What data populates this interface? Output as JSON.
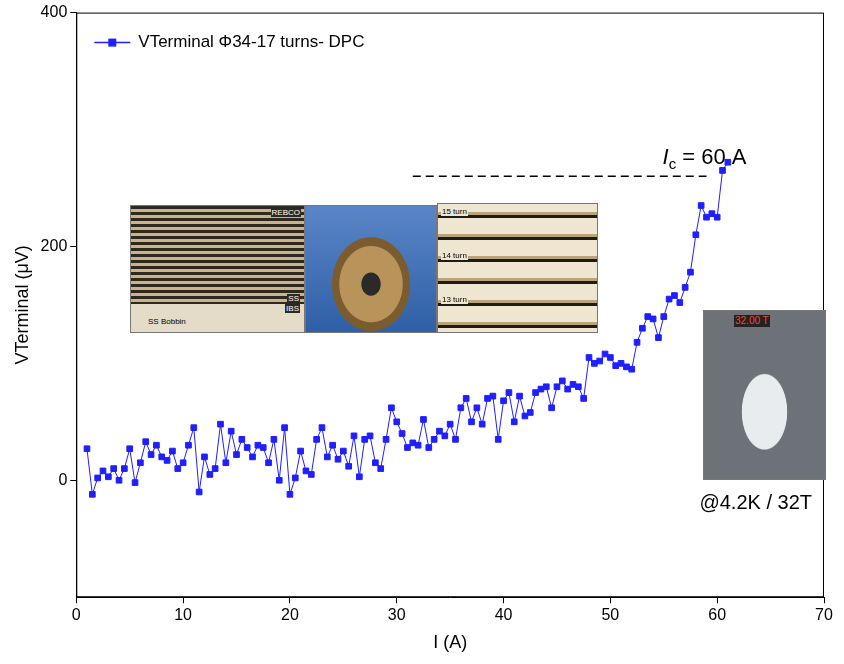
{
  "chart_data": {
    "type": "line",
    "x_label": "I (A)",
    "y_label": "VTerminal (μV)",
    "x": [
      1,
      1.5,
      2,
      2.5,
      3,
      3.5,
      4,
      4.5,
      5,
      5.5,
      6,
      6.5,
      7,
      7.5,
      8,
      8.5,
      9,
      9.5,
      10,
      10.5,
      11,
      11.5,
      12,
      12.5,
      13,
      13.5,
      14,
      14.5,
      15,
      15.5,
      16,
      16.5,
      17,
      17.5,
      18,
      18.5,
      19,
      19.5,
      20,
      20.5,
      21,
      21.5,
      22,
      22.5,
      23,
      23.5,
      24,
      24.5,
      25,
      25.5,
      26,
      26.5,
      27,
      27.5,
      28,
      28.5,
      29,
      29.5,
      30,
      30.5,
      31,
      31.5,
      32,
      32.5,
      33,
      33.5,
      34,
      34.5,
      35,
      35.5,
      36,
      36.5,
      37,
      37.5,
      38,
      38.5,
      39,
      39.5,
      40,
      40.5,
      41,
      41.5,
      42,
      42.5,
      43,
      43.5,
      44,
      44.5,
      45,
      45.5,
      46,
      46.5,
      47,
      47.5,
      48,
      48.5,
      49,
      49.5,
      50,
      50.5,
      51,
      51.5,
      52,
      52.5,
      53,
      53.5,
      54,
      54.5,
      55,
      55.5,
      56,
      56.5,
      57,
      57.5,
      58,
      58.5,
      59,
      59.5,
      60,
      60.5,
      61
    ],
    "series": [
      {
        "name": "VTerminal Φ34-17 turns- DPC",
        "color": "#1f1fff",
        "marker": "square",
        "line_style": "solid",
        "values": [
          27,
          -12,
          2,
          8,
          3,
          10,
          0,
          10,
          27,
          -2,
          15,
          33,
          22,
          30,
          20,
          17,
          25,
          10,
          15,
          30,
          45,
          -10,
          20,
          5,
          10,
          48,
          15,
          42,
          22,
          35,
          28,
          20,
          30,
          28,
          15,
          35,
          0,
          45,
          -12,
          2,
          25,
          8,
          5,
          35,
          45,
          20,
          30,
          18,
          25,
          12,
          38,
          3,
          35,
          38,
          15,
          10,
          35,
          62,
          50,
          40,
          28,
          32,
          30,
          52,
          28,
          35,
          42,
          38,
          48,
          35,
          62,
          70,
          50,
          62,
          48,
          70,
          72,
          35,
          68,
          75,
          50,
          72,
          55,
          58,
          75,
          78,
          80,
          62,
          80,
          85,
          78,
          82,
          80,
          70,
          105,
          100,
          102,
          108,
          105,
          98,
          100,
          97,
          95,
          118,
          130,
          140,
          138,
          122,
          140,
          155,
          158,
          152,
          165,
          178,
          210,
          235,
          225,
          228,
          225,
          265,
          272
        ]
      }
    ],
    "xlim": [
      0,
      70
    ],
    "xticks": [
      0,
      10,
      20,
      30,
      40,
      50,
      60,
      70
    ],
    "ylim": [
      -100,
      400
    ],
    "yticks": [
      0,
      200,
      400
    ],
    "grid": false,
    "legend": "upper left",
    "annotations": [
      {
        "text": "Ic = 60 A",
        "y": 260,
        "x": [
          31.5,
          59
        ],
        "line_style": "dashed"
      },
      {
        "text": "@4.2K / 32T"
      }
    ],
    "insets": [
      {
        "labels": [
          "REBCO",
          "SS",
          "IBS",
          "SS Bobbin"
        ]
      },
      {
        "labels": []
      },
      {
        "labels": [
          "15 turn",
          "14 turn",
          "13 turn"
        ]
      },
      {
        "labels": [
          "32.00 T"
        ]
      }
    ]
  }
}
